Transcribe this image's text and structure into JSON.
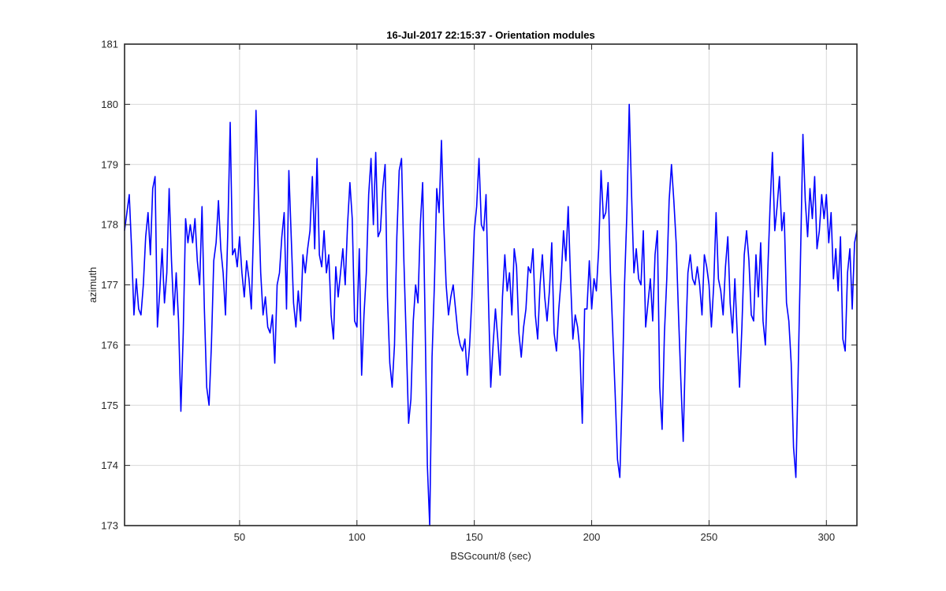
{
  "figure": {
    "title": "16-Jul-2017 22:15:37 - Orientation modules",
    "xlabel": "BSGcount/8 (sec)",
    "ylabel": "azimuth"
  },
  "colors": {
    "line": "#0000ff",
    "grid": "#d9d9d9",
    "axes": "#262626",
    "background": "#ffffff"
  },
  "chart_data": {
    "type": "line",
    "title": "16-Jul-2017 22:15:37 - Orientation modules",
    "xlabel": "BSGcount/8 (sec)",
    "ylabel": "azimuth",
    "xlim": [
      1,
      313
    ],
    "ylim": [
      173,
      181
    ],
    "xticks": [
      50,
      100,
      150,
      200,
      250,
      300
    ],
    "yticks": [
      173,
      174,
      175,
      176,
      177,
      178,
      179,
      180,
      181
    ],
    "grid": true,
    "series": [
      {
        "name": "",
        "color": "#0000ff",
        "points": [
          [
            1,
            177.9
          ],
          [
            2,
            178.2
          ],
          [
            3,
            178.5
          ],
          [
            4,
            177.6
          ],
          [
            5,
            176.5
          ],
          [
            6,
            177.1
          ],
          [
            7,
            176.6
          ],
          [
            8,
            176.5
          ],
          [
            9,
            177.0
          ],
          [
            10,
            177.8
          ],
          [
            11,
            178.2
          ],
          [
            12,
            177.5
          ],
          [
            13,
            178.6
          ],
          [
            14,
            178.8
          ],
          [
            15,
            176.3
          ],
          [
            16,
            176.9
          ],
          [
            17,
            177.6
          ],
          [
            18,
            176.7
          ],
          [
            19,
            177.2
          ],
          [
            20,
            178.6
          ],
          [
            21,
            177.4
          ],
          [
            22,
            176.5
          ],
          [
            23,
            177.2
          ],
          [
            24,
            176.4
          ],
          [
            25,
            174.9
          ],
          [
            26,
            176.2
          ],
          [
            27,
            178.1
          ],
          [
            28,
            177.7
          ],
          [
            29,
            178.0
          ],
          [
            30,
            177.7
          ],
          [
            31,
            178.1
          ],
          [
            32,
            177.4
          ],
          [
            33,
            177.0
          ],
          [
            34,
            178.3
          ],
          [
            35,
            176.6
          ],
          [
            36,
            175.3
          ],
          [
            37,
            175.0
          ],
          [
            38,
            176.0
          ],
          [
            39,
            177.4
          ],
          [
            40,
            177.7
          ],
          [
            41,
            178.4
          ],
          [
            42,
            177.6
          ],
          [
            43,
            177.2
          ],
          [
            44,
            176.5
          ],
          [
            45,
            177.9
          ],
          [
            46,
            179.7
          ],
          [
            47,
            177.5
          ],
          [
            48,
            177.6
          ],
          [
            49,
            177.3
          ],
          [
            50,
            177.8
          ],
          [
            51,
            177.2
          ],
          [
            52,
            176.8
          ],
          [
            53,
            177.4
          ],
          [
            54,
            177.1
          ],
          [
            55,
            176.6
          ],
          [
            56,
            178.0
          ],
          [
            57,
            179.9
          ],
          [
            58,
            178.5
          ],
          [
            59,
            177.2
          ],
          [
            60,
            176.5
          ],
          [
            61,
            176.8
          ],
          [
            62,
            176.3
          ],
          [
            63,
            176.2
          ],
          [
            64,
            176.5
          ],
          [
            65,
            175.7
          ],
          [
            66,
            177.0
          ],
          [
            67,
            177.2
          ],
          [
            68,
            177.8
          ],
          [
            69,
            178.2
          ],
          [
            70,
            176.6
          ],
          [
            71,
            178.9
          ],
          [
            72,
            177.8
          ],
          [
            73,
            176.7
          ],
          [
            74,
            176.3
          ],
          [
            75,
            176.9
          ],
          [
            76,
            176.4
          ],
          [
            77,
            177.5
          ],
          [
            78,
            177.2
          ],
          [
            79,
            177.6
          ],
          [
            80,
            177.9
          ],
          [
            81,
            178.8
          ],
          [
            82,
            177.6
          ],
          [
            83,
            179.1
          ],
          [
            84,
            177.5
          ],
          [
            85,
            177.3
          ],
          [
            86,
            177.9
          ],
          [
            87,
            177.2
          ],
          [
            88,
            177.5
          ],
          [
            89,
            176.5
          ],
          [
            90,
            176.1
          ],
          [
            91,
            177.3
          ],
          [
            92,
            176.8
          ],
          [
            93,
            177.2
          ],
          [
            94,
            177.6
          ],
          [
            95,
            177.0
          ],
          [
            96,
            178.0
          ],
          [
            97,
            178.7
          ],
          [
            98,
            178.1
          ],
          [
            99,
            176.4
          ],
          [
            100,
            176.3
          ],
          [
            101,
            177.6
          ],
          [
            102,
            175.5
          ],
          [
            103,
            176.5
          ],
          [
            104,
            177.2
          ],
          [
            105,
            178.5
          ],
          [
            106,
            179.1
          ],
          [
            107,
            178.0
          ],
          [
            108,
            179.2
          ],
          [
            109,
            177.8
          ],
          [
            110,
            177.9
          ],
          [
            111,
            178.6
          ],
          [
            112,
            179.0
          ],
          [
            113,
            176.8
          ],
          [
            114,
            175.7
          ],
          [
            115,
            175.3
          ],
          [
            116,
            176.0
          ],
          [
            117,
            177.8
          ],
          [
            118,
            178.9
          ],
          [
            119,
            179.1
          ],
          [
            120,
            177.4
          ],
          [
            121,
            176.1
          ],
          [
            122,
            174.7
          ],
          [
            123,
            175.1
          ],
          [
            124,
            176.4
          ],
          [
            125,
            177.0
          ],
          [
            126,
            176.7
          ],
          [
            127,
            178.0
          ],
          [
            128,
            178.7
          ],
          [
            129,
            176.5
          ],
          [
            130,
            174.0
          ],
          [
            131,
            173.0
          ],
          [
            132,
            175.8
          ],
          [
            133,
            177.0
          ],
          [
            134,
            178.6
          ],
          [
            135,
            178.2
          ],
          [
            136,
            179.4
          ],
          [
            137,
            178.0
          ],
          [
            138,
            177.0
          ],
          [
            139,
            176.5
          ],
          [
            140,
            176.8
          ],
          [
            141,
            177.0
          ],
          [
            142,
            176.6
          ],
          [
            143,
            176.2
          ],
          [
            144,
            176.0
          ],
          [
            145,
            175.9
          ],
          [
            146,
            176.1
          ],
          [
            147,
            175.5
          ],
          [
            148,
            176.0
          ],
          [
            149,
            176.8
          ],
          [
            150,
            177.9
          ],
          [
            151,
            178.3
          ],
          [
            152,
            179.1
          ],
          [
            153,
            178.0
          ],
          [
            154,
            177.9
          ],
          [
            155,
            178.5
          ],
          [
            156,
            176.8
          ],
          [
            157,
            175.3
          ],
          [
            158,
            176.0
          ],
          [
            159,
            176.6
          ],
          [
            160,
            176.1
          ],
          [
            161,
            175.5
          ],
          [
            162,
            176.8
          ],
          [
            163,
            177.5
          ],
          [
            164,
            176.9
          ],
          [
            165,
            177.2
          ],
          [
            166,
            176.5
          ],
          [
            167,
            177.6
          ],
          [
            168,
            177.3
          ],
          [
            169,
            176.2
          ],
          [
            170,
            175.8
          ],
          [
            171,
            176.3
          ],
          [
            172,
            176.6
          ],
          [
            173,
            177.3
          ],
          [
            174,
            177.2
          ],
          [
            175,
            177.6
          ],
          [
            176,
            176.5
          ],
          [
            177,
            176.1
          ],
          [
            178,
            177.0
          ],
          [
            179,
            177.5
          ],
          [
            180,
            176.8
          ],
          [
            181,
            176.4
          ],
          [
            182,
            176.9
          ],
          [
            183,
            177.7
          ],
          [
            184,
            176.2
          ],
          [
            185,
            175.9
          ],
          [
            186,
            176.6
          ],
          [
            187,
            177.1
          ],
          [
            188,
            177.9
          ],
          [
            189,
            177.4
          ],
          [
            190,
            178.3
          ],
          [
            191,
            177.1
          ],
          [
            192,
            176.1
          ],
          [
            193,
            176.5
          ],
          [
            194,
            176.3
          ],
          [
            195,
            175.9
          ],
          [
            196,
            174.7
          ],
          [
            197,
            176.6
          ],
          [
            198,
            176.6
          ],
          [
            199,
            177.4
          ],
          [
            200,
            176.6
          ],
          [
            201,
            177.1
          ],
          [
            202,
            176.9
          ],
          [
            203,
            177.6
          ],
          [
            204,
            178.9
          ],
          [
            205,
            178.1
          ],
          [
            206,
            178.2
          ],
          [
            207,
            178.7
          ],
          [
            208,
            177.2
          ],
          [
            209,
            176.2
          ],
          [
            210,
            175.2
          ],
          [
            211,
            174.1
          ],
          [
            212,
            173.8
          ],
          [
            213,
            175.2
          ],
          [
            214,
            177.0
          ],
          [
            215,
            178.2
          ],
          [
            216,
            180.0
          ],
          [
            217,
            178.5
          ],
          [
            218,
            177.2
          ],
          [
            219,
            177.6
          ],
          [
            220,
            177.1
          ],
          [
            221,
            177.0
          ],
          [
            222,
            177.9
          ],
          [
            223,
            176.3
          ],
          [
            224,
            176.7
          ],
          [
            225,
            177.1
          ],
          [
            226,
            176.4
          ],
          [
            227,
            177.5
          ],
          [
            228,
            177.9
          ],
          [
            229,
            175.3
          ],
          [
            230,
            174.6
          ],
          [
            231,
            176.2
          ],
          [
            232,
            177.1
          ],
          [
            233,
            178.4
          ],
          [
            234,
            179.0
          ],
          [
            235,
            178.4
          ],
          [
            236,
            177.7
          ],
          [
            237,
            176.5
          ],
          [
            238,
            175.4
          ],
          [
            239,
            174.4
          ],
          [
            240,
            176.0
          ],
          [
            241,
            177.2
          ],
          [
            242,
            177.5
          ],
          [
            243,
            177.1
          ],
          [
            244,
            177.0
          ],
          [
            245,
            177.3
          ],
          [
            246,
            177.0
          ],
          [
            247,
            176.5
          ],
          [
            248,
            177.5
          ],
          [
            249,
            177.3
          ],
          [
            250,
            177.0
          ],
          [
            251,
            176.3
          ],
          [
            252,
            177.0
          ],
          [
            253,
            178.2
          ],
          [
            254,
            177.1
          ],
          [
            255,
            176.9
          ],
          [
            256,
            176.5
          ],
          [
            257,
            177.3
          ],
          [
            258,
            177.8
          ],
          [
            259,
            176.7
          ],
          [
            260,
            176.2
          ],
          [
            261,
            177.1
          ],
          [
            262,
            176.2
          ],
          [
            263,
            175.3
          ],
          [
            264,
            176.3
          ],
          [
            265,
            177.5
          ],
          [
            266,
            177.9
          ],
          [
            267,
            177.4
          ],
          [
            268,
            176.5
          ],
          [
            269,
            176.4
          ],
          [
            270,
            177.5
          ],
          [
            271,
            176.8
          ],
          [
            272,
            177.7
          ],
          [
            273,
            176.4
          ],
          [
            274,
            176.0
          ],
          [
            275,
            177.2
          ],
          [
            276,
            178.3
          ],
          [
            277,
            179.2
          ],
          [
            278,
            177.9
          ],
          [
            279,
            178.3
          ],
          [
            280,
            178.8
          ],
          [
            281,
            177.9
          ],
          [
            282,
            178.2
          ],
          [
            283,
            176.7
          ],
          [
            284,
            176.4
          ],
          [
            285,
            175.7
          ],
          [
            286,
            174.3
          ],
          [
            287,
            173.8
          ],
          [
            288,
            175.6
          ],
          [
            289,
            177.5
          ],
          [
            290,
            179.5
          ],
          [
            291,
            178.4
          ],
          [
            292,
            177.8
          ],
          [
            293,
            178.6
          ],
          [
            294,
            178.1
          ],
          [
            295,
            178.8
          ],
          [
            296,
            177.6
          ],
          [
            297,
            177.9
          ],
          [
            298,
            178.5
          ],
          [
            299,
            178.1
          ],
          [
            300,
            178.5
          ],
          [
            301,
            177.7
          ],
          [
            302,
            178.2
          ],
          [
            303,
            177.1
          ],
          [
            304,
            177.6
          ],
          [
            305,
            176.9
          ],
          [
            306,
            177.8
          ],
          [
            307,
            176.1
          ],
          [
            308,
            175.9
          ],
          [
            309,
            177.2
          ],
          [
            310,
            177.6
          ],
          [
            311,
            176.6
          ],
          [
            312,
            177.7
          ],
          [
            313,
            177.9
          ]
        ]
      }
    ]
  }
}
